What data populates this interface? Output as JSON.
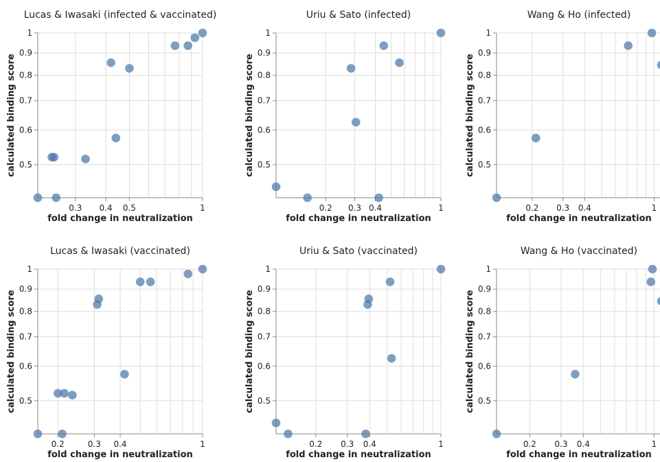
{
  "chart_data": [
    {
      "type": "scatter",
      "title": "Lucas & Iwasaki (infected & vaccinated)",
      "xlabel": "fold change in neutralization",
      "ylabel": "calculated binding score",
      "x_scale": "log",
      "y_scale": "log",
      "xlim": [
        0.21,
        1
      ],
      "ylim": [
        0.42,
        1
      ],
      "x_ticks": [
        0.3,
        0.4,
        0.5,
        1
      ],
      "x_tick_labels": [
        "0.3",
        "0.4",
        "0.5",
        "1"
      ],
      "y_ticks": [
        0.5,
        0.6,
        0.7,
        0.8,
        0.9,
        1
      ],
      "y_tick_labels": [
        "0.5",
        "0.6",
        "0.7",
        "0.8",
        "0.9",
        "1"
      ],
      "x_grid": [
        0.3,
        0.4,
        0.5,
        0.6,
        0.7,
        0.8,
        0.9,
        1
      ],
      "y_grid": [
        0.5,
        0.6,
        0.7,
        0.8,
        0.9,
        1
      ],
      "points": [
        [
          0.21,
          0.42
        ],
        [
          0.24,
          0.52
        ],
        [
          0.245,
          0.52
        ],
        [
          0.25,
          0.42
        ],
        [
          0.33,
          0.515
        ],
        [
          0.42,
          0.855
        ],
        [
          0.44,
          0.575
        ],
        [
          0.5,
          0.83
        ],
        [
          0.77,
          0.935
        ],
        [
          0.87,
          0.935
        ],
        [
          0.93,
          0.975
        ],
        [
          1.0,
          1.0
        ]
      ]
    },
    {
      "type": "scatter",
      "title": "Uriu & Sato (infected)",
      "xlabel": "fold change in neutralization",
      "ylabel": "calculated binding score",
      "x_scale": "log",
      "y_scale": "log",
      "xlim": [
        0.1,
        1
      ],
      "ylim": [
        0.42,
        1
      ],
      "x_ticks": [
        0.2,
        0.3,
        0.4,
        1
      ],
      "x_tick_labels": [
        "0.2",
        "0.3",
        "0.4",
        "1"
      ],
      "y_ticks": [
        0.5,
        0.6,
        0.7,
        0.8,
        0.9,
        1
      ],
      "y_tick_labels": [
        "0.5",
        "0.6",
        "0.7",
        "0.8",
        "0.9",
        "1"
      ],
      "x_grid": [
        0.2,
        0.3,
        0.4,
        0.5,
        0.6,
        0.7,
        0.8,
        0.9,
        1
      ],
      "y_grid": [
        0.5,
        0.6,
        0.7,
        0.8,
        0.9,
        1
      ],
      "points": [
        [
          0.1,
          0.445
        ],
        [
          0.155,
          0.42
        ],
        [
          0.285,
          0.83
        ],
        [
          0.305,
          0.625
        ],
        [
          0.42,
          0.42
        ],
        [
          0.45,
          0.935
        ],
        [
          0.56,
          0.855
        ],
        [
          1.0,
          1.0
        ]
      ]
    },
    {
      "type": "scatter",
      "title": "Wang & Ho (infected)",
      "xlabel": "fold change in neutralization",
      "ylabel": "calculated binding score",
      "x_scale": "log",
      "y_scale": "log",
      "xlim": [
        0.125,
        1.1
      ],
      "ylim": [
        0.42,
        1
      ],
      "x_ticks": [
        0.2,
        0.3,
        0.4,
        1
      ],
      "x_tick_labels": [
        "0.2",
        "0.3",
        "0.4",
        "1"
      ],
      "y_ticks": [
        0.5,
        0.6,
        0.7,
        0.8,
        0.9,
        1
      ],
      "y_tick_labels": [
        "0.5",
        "0.6",
        "0.7",
        "0.8",
        "0.9",
        "1"
      ],
      "x_grid": [
        0.2,
        0.3,
        0.4,
        0.5,
        0.6,
        0.7,
        0.8,
        0.9,
        1
      ],
      "y_grid": [
        0.5,
        0.6,
        0.7,
        0.8,
        0.9,
        1
      ],
      "points": [
        [
          0.125,
          0.42
        ],
        [
          0.21,
          0.575
        ],
        [
          0.71,
          0.935
        ],
        [
          0.97,
          1.0
        ],
        [
          1.1,
          0.845
        ]
      ]
    },
    {
      "type": "scatter",
      "title": "Lucas & Iwasaki (vaccinated)",
      "xlabel": "fold change in neutralization",
      "ylabel": "calculated binding score",
      "x_scale": "log",
      "y_scale": "log",
      "xlim": [
        0.16,
        1
      ],
      "ylim": [
        0.42,
        1
      ],
      "x_ticks": [
        0.2,
        0.3,
        0.4,
        1
      ],
      "x_tick_labels": [
        "0.2",
        "0.3",
        "0.4",
        "1"
      ],
      "y_ticks": [
        0.5,
        0.6,
        0.7,
        0.8,
        0.9,
        1
      ],
      "y_tick_labels": [
        "0.5",
        "0.6",
        "0.7",
        "0.8",
        "0.9",
        "1"
      ],
      "x_grid": [
        0.2,
        0.3,
        0.4,
        0.5,
        0.6,
        0.7,
        0.8,
        0.9,
        1
      ],
      "y_grid": [
        0.5,
        0.6,
        0.7,
        0.8,
        0.9,
        1
      ],
      "points": [
        [
          0.16,
          0.42
        ],
        [
          0.2,
          0.52
        ],
        [
          0.21,
          0.42
        ],
        [
          0.215,
          0.52
        ],
        [
          0.235,
          0.515
        ],
        [
          0.31,
          0.83
        ],
        [
          0.315,
          0.855
        ],
        [
          0.42,
          0.575
        ],
        [
          0.5,
          0.935
        ],
        [
          0.56,
          0.935
        ],
        [
          0.85,
          0.975
        ],
        [
          1.0,
          1.0
        ]
      ]
    },
    {
      "type": "scatter",
      "title": "Uriu & Sato (vaccinated)",
      "xlabel": "fold change in neutralization",
      "ylabel": "calculated binding score",
      "x_scale": "log",
      "y_scale": "log",
      "xlim": [
        0.12,
        1
      ],
      "ylim": [
        0.42,
        1
      ],
      "x_ticks": [
        0.2,
        0.3,
        0.4,
        1
      ],
      "x_tick_labels": [
        "0.2",
        "0.3",
        "0.4",
        "1"
      ],
      "y_ticks": [
        0.5,
        0.6,
        0.7,
        0.8,
        0.9,
        1
      ],
      "y_tick_labels": [
        "0.5",
        "0.6",
        "0.7",
        "0.8",
        "0.9",
        "1"
      ],
      "x_grid": [
        0.2,
        0.3,
        0.4,
        0.5,
        0.6,
        0.7,
        0.8,
        0.9,
        1
      ],
      "y_grid": [
        0.5,
        0.6,
        0.7,
        0.8,
        0.9,
        1
      ],
      "points": [
        [
          0.12,
          0.445
        ],
        [
          0.14,
          0.42
        ],
        [
          0.38,
          0.42
        ],
        [
          0.39,
          0.83
        ],
        [
          0.395,
          0.855
        ],
        [
          0.52,
          0.935
        ],
        [
          0.53,
          0.625
        ],
        [
          1.0,
          1.0
        ]
      ]
    },
    {
      "type": "scatter",
      "title": "Wang & Ho (vaccinated)",
      "xlabel": "fold change in neutralization",
      "ylabel": "calculated binding score",
      "x_scale": "log",
      "y_scale": "log",
      "xlim": [
        0.13,
        1.1
      ],
      "ylim": [
        0.42,
        1
      ],
      "x_ticks": [
        0.2,
        0.3,
        0.4,
        1
      ],
      "x_tick_labels": [
        "0.2",
        "0.3",
        "0.4",
        "1"
      ],
      "y_ticks": [
        0.5,
        0.6,
        0.7,
        0.8,
        0.9,
        1
      ],
      "y_tick_labels": [
        "0.5",
        "0.6",
        "0.7",
        "0.8",
        "0.9",
        "1"
      ],
      "x_grid": [
        0.2,
        0.3,
        0.4,
        0.5,
        0.6,
        0.7,
        0.8,
        0.9,
        1
      ],
      "y_grid": [
        0.5,
        0.6,
        0.7,
        0.8,
        0.9,
        1
      ],
      "points": [
        [
          0.13,
          0.42
        ],
        [
          0.36,
          0.575
        ],
        [
          0.96,
          0.935
        ],
        [
          0.98,
          1.0
        ],
        [
          1.1,
          0.845
        ]
      ]
    }
  ],
  "colors": {
    "point": "#4c78a8",
    "grid": "#dddddd",
    "domain": "#888888"
  }
}
